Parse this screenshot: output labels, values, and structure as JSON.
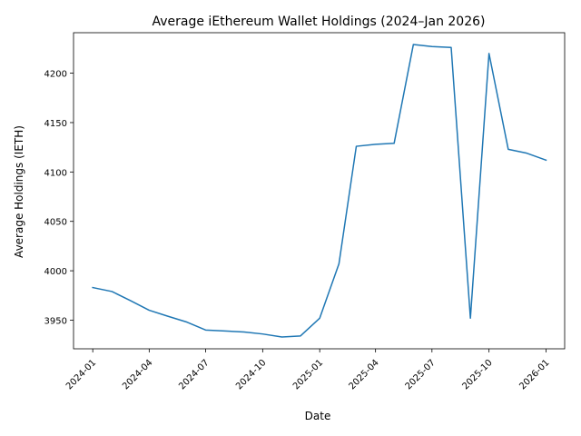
{
  "chart_data": {
    "type": "line",
    "title": "Average iEthereum Wallet Holdings (2024–Jan 2026)",
    "xlabel": "Date",
    "ylabel": "Average Holdings (IETH)",
    "x_ticks": [
      "2024-01",
      "2024-04",
      "2024-07",
      "2024-10",
      "2025-01",
      "2025-04",
      "2025-07",
      "2025-10",
      "2026-01"
    ],
    "y_ticks": [
      3950,
      4000,
      4050,
      4100,
      4150,
      4200
    ],
    "xlim": [
      "2023-12-01",
      "2026-01-31"
    ],
    "ylim": [
      3921,
      4241
    ],
    "grid": false,
    "series": [
      {
        "color": "#1f77b4",
        "points": [
          {
            "x": "2024-01-01",
            "y": 3983
          },
          {
            "x": "2024-02-01",
            "y": 3979
          },
          {
            "x": "2024-03-01",
            "y": 3970
          },
          {
            "x": "2024-04-01",
            "y": 3960
          },
          {
            "x": "2024-05-01",
            "y": 3954
          },
          {
            "x": "2024-06-01",
            "y": 3948
          },
          {
            "x": "2024-07-01",
            "y": 3940
          },
          {
            "x": "2024-08-01",
            "y": 3939
          },
          {
            "x": "2024-09-01",
            "y": 3938
          },
          {
            "x": "2024-10-01",
            "y": 3936
          },
          {
            "x": "2024-11-01",
            "y": 3933
          },
          {
            "x": "2024-12-01",
            "y": 3934
          },
          {
            "x": "2025-01-01",
            "y": 3952
          },
          {
            "x": "2025-02-01",
            "y": 4007
          },
          {
            "x": "2025-03-01",
            "y": 4126
          },
          {
            "x": "2025-04-01",
            "y": 4128
          },
          {
            "x": "2025-05-01",
            "y": 4129
          },
          {
            "x": "2025-06-01",
            "y": 4229
          },
          {
            "x": "2025-07-01",
            "y": 4227
          },
          {
            "x": "2025-08-01",
            "y": 4226
          },
          {
            "x": "2025-09-01",
            "y": 3952
          },
          {
            "x": "2025-10-01",
            "y": 4220
          },
          {
            "x": "2025-11-01",
            "y": 4123
          },
          {
            "x": "2025-12-01",
            "y": 4119
          },
          {
            "x": "2026-01-01",
            "y": 4112
          }
        ]
      }
    ]
  }
}
